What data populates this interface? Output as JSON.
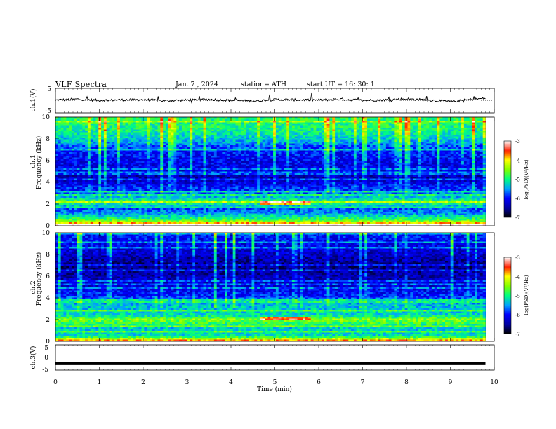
{
  "header": {
    "title": "VLF  Spectra",
    "date": "Jan.  7  , 2024",
    "station": "station= ATH",
    "start": "start  UT  =    16: 30: 1"
  },
  "chart_data": [
    {
      "type": "line",
      "title": "ch.1(V)",
      "ylabel": "ch.1(V)",
      "ylim": [
        -5,
        5
      ],
      "yticks": [
        "5",
        "-5"
      ],
      "xlim": [
        0,
        10
      ],
      "x": [
        0,
        0.5,
        1,
        1.5,
        2,
        2.5,
        3,
        3.5,
        4,
        4.5,
        5,
        5.5,
        6,
        6.5,
        7,
        7.5,
        8,
        8.5,
        9,
        9.5,
        9.8
      ],
      "series": [
        {
          "values": [
            0.2,
            0.6,
            0.1,
            0.3,
            0.4,
            -0.1,
            0.2,
            0.5,
            0.1,
            -0.2,
            0.4,
            0.3,
            0.2,
            0.6,
            0.1,
            0.3,
            0.7,
            0.2,
            -0.4,
            0.5,
            0.9
          ]
        }
      ],
      "color": "#000000"
    },
    {
      "type": "heatmap",
      "title": "ch.1 Frequency (kHz)",
      "ylabel": "ch.1\nFrequency  (kHz)",
      "ylim": [
        0,
        10
      ],
      "yticks": [
        "0",
        "2",
        "4",
        "6",
        "8",
        "10"
      ],
      "xlim": [
        0,
        9.8
      ],
      "zlim": [
        -7,
        -3
      ],
      "colorbar_label": "log(PSD)(V²/Hz)",
      "colorbar_ticks": [
        "-3",
        "-4",
        "-5",
        "-6",
        "-7"
      ],
      "band_profile": [
        {
          "f": 0.0,
          "level": -3.0
        },
        {
          "f": 0.4,
          "level": -4.5
        },
        {
          "f": 1.0,
          "level": -5.4
        },
        {
          "f": 1.6,
          "level": -5.8
        },
        {
          "f": 2.2,
          "level": -4.8
        },
        {
          "f": 2.6,
          "level": -5.3
        },
        {
          "f": 3.0,
          "level": -5.7
        },
        {
          "f": 3.6,
          "level": -6.0
        },
        {
          "f": 4.4,
          "level": -6.4
        },
        {
          "f": 5.0,
          "level": -6.2
        },
        {
          "f": 6.0,
          "level": -6.1
        },
        {
          "f": 7.0,
          "level": -5.9
        },
        {
          "f": 8.0,
          "level": -5.3
        },
        {
          "f": 9.0,
          "level": -5.0
        },
        {
          "f": 10.0,
          "level": -4.9
        }
      ]
    },
    {
      "type": "heatmap",
      "title": "ch.2 Frequency (kHz)",
      "ylabel": "ch.2\nFrequency  (kHz)",
      "ylim": [
        0,
        10
      ],
      "yticks": [
        "0",
        "2",
        "4",
        "6",
        "8",
        "10"
      ],
      "xlim": [
        0,
        9.8
      ],
      "zlim": [
        -7,
        -3
      ],
      "colorbar_label": "log(PSD)(V²/Hz)",
      "colorbar_ticks": [
        "-3",
        "-4",
        "-5",
        "-6",
        "-7"
      ],
      "band_profile": [
        {
          "f": 0.0,
          "level": -3.5
        },
        {
          "f": 0.5,
          "level": -5.2
        },
        {
          "f": 1.2,
          "level": -5.3
        },
        {
          "f": 2.0,
          "level": -4.5
        },
        {
          "f": 2.4,
          "level": -5.2
        },
        {
          "f": 3.4,
          "level": -5.4
        },
        {
          "f": 4.2,
          "level": -5.9
        },
        {
          "f": 5.0,
          "level": -6.2
        },
        {
          "f": 6.0,
          "level": -6.4
        },
        {
          "f": 7.0,
          "level": -6.6
        },
        {
          "f": 8.0,
          "level": -6.3
        },
        {
          "f": 9.0,
          "level": -6.1
        },
        {
          "f": 10.0,
          "level": -5.9
        }
      ]
    },
    {
      "type": "line",
      "title": "ch.3(V)",
      "ylabel": "ch.3(V)",
      "ylim": [
        -5,
        5
      ],
      "yticks": [
        "5",
        "0",
        "-5"
      ],
      "xlim": [
        0,
        10
      ],
      "xlabel": "Time  (min)",
      "xticks": [
        "0",
        "1",
        "2",
        "3",
        "4",
        "5",
        "6",
        "7",
        "8",
        "9",
        "10"
      ],
      "x": [
        0,
        9.8
      ],
      "series": [
        {
          "values": [
            -2.3,
            -2.3
          ]
        }
      ],
      "color": "#000000"
    }
  ]
}
